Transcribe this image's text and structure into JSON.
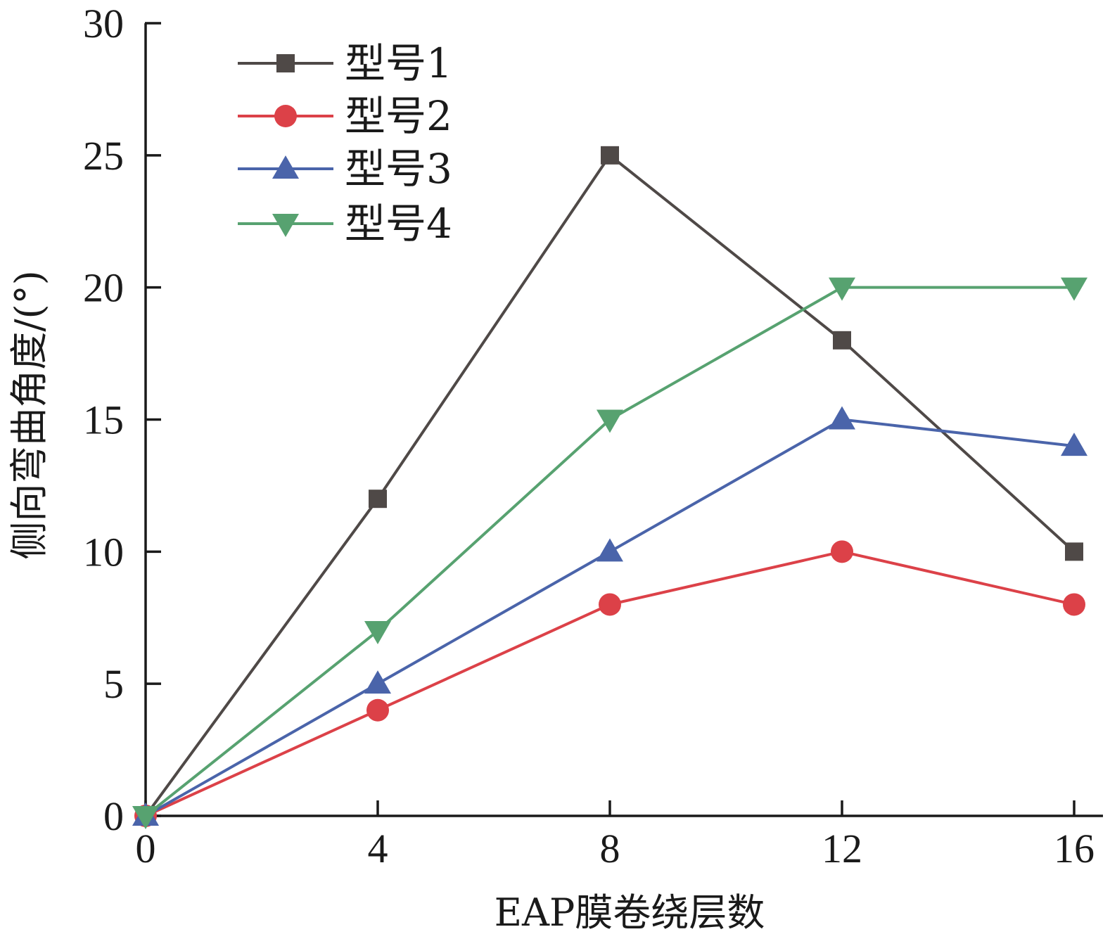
{
  "chart_data": {
    "type": "line",
    "title": "",
    "xlabel": "EAP膜卷绕层数",
    "ylabel": "侧向弯曲角度/(°)",
    "xlim": [
      0,
      16
    ],
    "ylim": [
      0,
      30
    ],
    "xticks": [
      0,
      4,
      8,
      12,
      16
    ],
    "yticks": [
      0,
      5,
      10,
      15,
      20,
      25,
      30
    ],
    "x": [
      0,
      4,
      8,
      12,
      16
    ],
    "grid": false,
    "legend_position": "top-left",
    "series": [
      {
        "name": "型号1",
        "values": [
          0,
          12,
          25,
          18,
          10
        ],
        "color": "#4f4947",
        "marker": "square"
      },
      {
        "name": "型号2",
        "values": [
          0,
          4,
          8,
          10,
          8
        ],
        "color": "#dc4148",
        "marker": "circle"
      },
      {
        "name": "型号3",
        "values": [
          0,
          5,
          10,
          15,
          14
        ],
        "color": "#4a64aa",
        "marker": "triangle-up"
      },
      {
        "name": "型号4",
        "values": [
          0,
          7,
          15,
          20,
          20
        ],
        "color": "#57a270",
        "marker": "triangle-down"
      }
    ]
  }
}
